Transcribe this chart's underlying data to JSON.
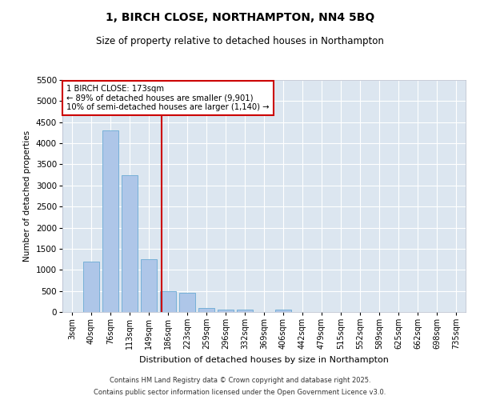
{
  "title": "1, BIRCH CLOSE, NORTHAMPTON, NN4 5BQ",
  "subtitle": "Size of property relative to detached houses in Northampton",
  "xlabel": "Distribution of detached houses by size in Northampton",
  "ylabel": "Number of detached properties",
  "categories": [
    "3sqm",
    "40sqm",
    "76sqm",
    "113sqm",
    "149sqm",
    "186sqm",
    "223sqm",
    "259sqm",
    "296sqm",
    "332sqm",
    "369sqm",
    "406sqm",
    "442sqm",
    "479sqm",
    "515sqm",
    "552sqm",
    "589sqm",
    "625sqm",
    "662sqm",
    "698sqm",
    "735sqm"
  ],
  "values": [
    0,
    1200,
    4300,
    3250,
    1250,
    500,
    450,
    100,
    50,
    50,
    0,
    50,
    0,
    0,
    0,
    0,
    0,
    0,
    0,
    0,
    0
  ],
  "bar_color": "#aec6e8",
  "bar_edge_color": "#6aaad4",
  "vline_color": "#cc0000",
  "annotation_text": "1 BIRCH CLOSE: 173sqm\n← 89% of detached houses are smaller (9,901)\n10% of semi-detached houses are larger (1,140) →",
  "annotation_box_facecolor": "#ffffff",
  "annotation_box_edgecolor": "#cc0000",
  "ylim": [
    0,
    5500
  ],
  "yticks": [
    0,
    500,
    1000,
    1500,
    2000,
    2500,
    3000,
    3500,
    4000,
    4500,
    5000,
    5500
  ],
  "figure_facecolor": "#ffffff",
  "axes_facecolor": "#dce6f0",
  "grid_color": "#ffffff",
  "footer_line1": "Contains HM Land Registry data © Crown copyright and database right 2025.",
  "footer_line2": "Contains public sector information licensed under the Open Government Licence v3.0."
}
